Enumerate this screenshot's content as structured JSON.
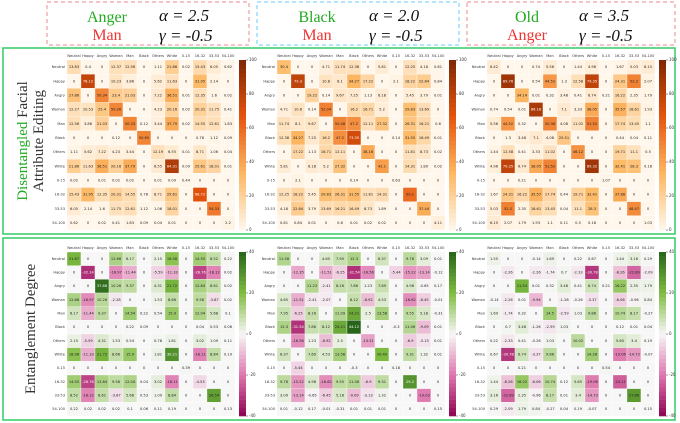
{
  "header": [
    {
      "title": "Anger",
      "subtitle": "Man",
      "alpha": "α = 2.5",
      "gamma": "γ = -0.5"
    },
    {
      "title": "Black",
      "subtitle": "Man",
      "alpha": "α = 2.0",
      "gamma": "γ = -0.5"
    },
    {
      "title": "Old",
      "subtitle": "Anger",
      "alpha": "α = 3.5",
      "gamma": "γ = -0.5"
    }
  ],
  "side_labels": {
    "top": [
      "Disentangled",
      "Facial",
      "Attribute Editing"
    ],
    "bottom": "Entanglement Degree"
  },
  "chart_data": [
    {
      "type": "heatmap",
      "categories": [
        "Neutral",
        "Happy",
        "Angry",
        "Woman",
        "Man",
        "Black",
        "Others",
        "White",
        "0-15",
        "16-32",
        "33-53",
        "54-100"
      ],
      "zlim": [
        0,
        100
      ],
      "zticks": [
        0,
        20,
        40,
        60,
        80,
        100
      ],
      "colormap": [
        "#fff7ec",
        "#fdb863",
        "#e6550d",
        "#7f2704"
      ],
      "values": [
        [
          13.83,
          0.4,
          0,
          12.37,
          12.56,
          0,
          1.11,
          21.86,
          0.02,
          15.43,
          6.05,
          0.62
        ],
        [
          0,
          78.12,
          0,
          10.23,
          3.86,
          0,
          5.62,
          11.63,
          0,
          31.95,
          2.14,
          0
        ],
        [
          27.86,
          0,
          50.34,
          23.4,
          21.03,
          0,
          7.22,
          36.51,
          0.01,
          12.35,
          1.6,
          0.02
        ],
        [
          12.27,
          10.53,
          25.4,
          50.26,
          0,
          0,
          4.23,
          20.16,
          0.02,
          20.31,
          11.75,
          0.41
        ],
        [
          12.56,
          3.86,
          21.03,
          0,
          50.33,
          0.12,
          3.44,
          37.79,
          0.02,
          14.55,
          12.61,
          1.83
        ],
        [
          0,
          0,
          0,
          0.12,
          0,
          50.65,
          0,
          0,
          0,
          0.78,
          1.12,
          0.09
        ],
        [
          1.11,
          5.62,
          7.22,
          4.23,
          3.44,
          0,
          12.19,
          6.55,
          0.01,
          8.71,
          1.06,
          0.04
        ],
        [
          21.86,
          11.63,
          36.51,
          20.16,
          37.79,
          0,
          6.55,
          84.31,
          0.09,
          25.61,
          18.01,
          0.01
        ],
        [
          0.02,
          0,
          0.01,
          0.02,
          0.02,
          0,
          0.01,
          0.09,
          0.44,
          0,
          0,
          0
        ],
        [
          15.43,
          31.95,
          12.35,
          20.31,
          14.55,
          0.78,
          8.71,
          25.61,
          0,
          68.72,
          0,
          0
        ],
        [
          6.05,
          2.14,
          1.6,
          11.75,
          12.61,
          1.12,
          1.06,
          18.01,
          0,
          0,
          54.33,
          0
        ],
        [
          0.62,
          0,
          0.02,
          0.41,
          1.83,
          0.09,
          0.04,
          0.01,
          0,
          0,
          0,
          2.2
        ]
      ]
    },
    {
      "type": "heatmap",
      "categories": [
        "Neutral",
        "Happy",
        "Angry",
        "Woman",
        "Man",
        "Black",
        "Others",
        "White",
        "0-15",
        "16-32",
        "33-53",
        "54-100"
      ],
      "zlim": [
        0,
        100
      ],
      "zticks": [
        0,
        20,
        40,
        60,
        80,
        100
      ],
      "colormap": [
        "#fff7ec",
        "#fdb863",
        "#e6550d",
        "#7f2704"
      ],
      "values": [
        [
          30.4,
          0,
          0,
          4.71,
          11.74,
          12.38,
          0,
          5.81,
          0,
          12.25,
          4.18,
          0.61
        ],
        [
          0,
          79.3,
          0,
          10.8,
          8.1,
          34.27,
          17.22,
          0,
          2.1,
          18.22,
          22.84,
          0.84
        ],
        [
          0,
          0,
          19.22,
          0.14,
          9.67,
          7.25,
          1.13,
          6.18,
          0,
          5.45,
          3.79,
          0.01
        ],
        [
          4.71,
          10.8,
          0.14,
          52.04,
          0,
          16.2,
          16.71,
          5.2,
          0,
          29.83,
          13.69,
          0
        ],
        [
          11.74,
          8.1,
          9.67,
          0,
          50.48,
          47.2,
          12.11,
          27.32,
          0,
          26.31,
          16.21,
          0.6
        ],
        [
          12.38,
          34.27,
          7.25,
          16.2,
          47.2,
          73.35,
          0,
          0,
          0.14,
          31.55,
          16.49,
          0.01
        ],
        [
          0,
          17.22,
          1.13,
          16.71,
          12.11,
          0,
          38.16,
          0,
          0,
          11.81,
          8.73,
          0.02
        ],
        [
          5.81,
          0,
          6.18,
          5.2,
          27.32,
          0,
          0,
          42.1,
          0,
          14.31,
          1.89,
          0.02
        ],
        [
          0,
          2.1,
          0,
          0,
          0,
          0.14,
          0,
          0,
          0.63,
          0,
          0,
          0
        ],
        [
          12.25,
          18.22,
          5.45,
          29.83,
          26.31,
          31.55,
          11.81,
          14.31,
          0,
          59.1,
          0,
          0
        ],
        [
          4.18,
          22.84,
          3.79,
          13.69,
          16.21,
          16.49,
          8.73,
          1.89,
          0,
          0,
          37.44,
          0
        ],
        [
          0.61,
          0.84,
          0.01,
          0,
          0.6,
          0.01,
          0.02,
          0.02,
          0,
          0,
          0,
          4.11
        ]
      ]
    },
    {
      "type": "heatmap",
      "categories": [
        "Neutral",
        "Happy",
        "Angry",
        "Woman",
        "Man",
        "Black",
        "Others",
        "White",
        "0-15",
        "16-32",
        "33-53",
        "54-100"
      ],
      "zlim": [
        0,
        100
      ],
      "zticks": [
        0,
        20,
        40,
        60,
        80,
        100
      ],
      "colormap": [
        "#fff7ec",
        "#fdb863",
        "#e6550d",
        "#7f2704"
      ],
      "values": [
        [
          6.42,
          0,
          0,
          0.74,
          5.56,
          0,
          1.44,
          4.96,
          0,
          1.67,
          5.03,
          6.15
        ],
        [
          0,
          89.76,
          0,
          0.54,
          44.52,
          1.3,
          12.58,
          79.35,
          0,
          24.31,
          52.2,
          2.07
        ],
        [
          0,
          0,
          34.14,
          0.01,
          0.32,
          3.48,
          0.41,
          6.74,
          0.21,
          16.22,
          2.35,
          1.79
        ],
        [
          0.74,
          0.54,
          0.01,
          86.18,
          0,
          7.1,
          3.33,
          38.05,
          0,
          35.57,
          18.61,
          1.93
        ],
        [
          5.56,
          44.52,
          0.32,
          0,
          50.36,
          4.08,
          11.02,
          51.52,
          0,
          17.74,
          13.45,
          1.1
        ],
        [
          0,
          1.3,
          3.48,
          7.1,
          4.08,
          25.51,
          0,
          0,
          0,
          0.44,
          0.04,
          0.11
        ],
        [
          1.44,
          12.58,
          0.41,
          3.33,
          11.02,
          0,
          46.12,
          0,
          0,
          19.71,
          11.1,
          0.5
        ],
        [
          4.96,
          79.35,
          6.74,
          38.05,
          51.52,
          0,
          0,
          89.32,
          0,
          32.41,
          28.3,
          0.18
        ],
        [
          0,
          0,
          0.21,
          0,
          0,
          0,
          0,
          0,
          1.07,
          0,
          0,
          0
        ],
        [
          1.67,
          24.31,
          16.22,
          35.57,
          17.74,
          0.44,
          19.71,
          32.41,
          0,
          37.88,
          0,
          0
        ],
        [
          5.03,
          52.2,
          2.35,
          18.61,
          13.45,
          0.04,
          11.1,
          28.3,
          0,
          0,
          48.47,
          0
        ],
        [
          6.15,
          2.07,
          1.79,
          1.93,
          1.1,
          0.11,
          0.5,
          0.18,
          0,
          0,
          0,
          1.03
        ]
      ]
    },
    {
      "type": "heatmap",
      "categories": [
        "Neutral",
        "Happy",
        "Angry",
        "Woman",
        "Man",
        "Black",
        "Others",
        "White",
        "0-15",
        "16-32",
        "33-53",
        "54-100"
      ],
      "zlim": [
        -40,
        40
      ],
      "zticks": [
        -40,
        -20,
        0,
        20,
        40
      ],
      "colormap": [
        "#8e0152",
        "#de77ae",
        "#f7f7f7",
        "#7fbc41",
        "#276419"
      ],
      "values": [
        [
          21.67,
          0,
          0,
          12.66,
          6.17,
          0,
          2.15,
          18.08,
          0,
          14.55,
          8.52,
          0.22
        ],
        [
          0,
          -32.14,
          0,
          -16.97,
          -11.44,
          0,
          -5.59,
          -11.33,
          0,
          -28.76,
          -18.12,
          0.02
        ],
        [
          0,
          0,
          37.68,
          10.26,
          9.37,
          0,
          4.31,
          21.72,
          0,
          12.84,
          8.61,
          0.02
        ],
        [
          12.66,
          -16.97,
          10.26,
          -2.28,
          0,
          0,
          1.53,
          8.66,
          0,
          9.58,
          -3.87,
          0.02
        ],
        [
          6.17,
          -11.44,
          9.37,
          0,
          14.54,
          0.22,
          0.54,
          15.9,
          0,
          12.04,
          5.68,
          0.1
        ],
        [
          0,
          0,
          0,
          0,
          0.22,
          0.09,
          0,
          0,
          0,
          0.04,
          0.53,
          0.06
        ],
        [
          2.15,
          -5.59,
          4.31,
          1.53,
          0.54,
          0,
          0.78,
          1.81,
          0,
          3.02,
          1.09,
          0.11
        ],
        [
          18.08,
          -11.33,
          21.72,
          8.66,
          15.9,
          0,
          1.81,
          30.21,
          0,
          -18.11,
          8.84,
          0.19
        ],
        [
          0,
          0,
          0,
          0,
          0,
          0,
          0,
          0,
          0.39,
          0,
          0,
          0
        ],
        [
          14.55,
          -28.76,
          12.84,
          9.58,
          12.04,
          0.04,
          3.02,
          -18.11,
          0,
          -4.53,
          0,
          0
        ],
        [
          8.52,
          -18.12,
          8.61,
          -3.87,
          5.68,
          0.53,
          1.09,
          8.84,
          0,
          0,
          26.54,
          0
        ],
        [
          0.22,
          0.02,
          0.02,
          0.02,
          0.1,
          0.06,
          0.11,
          0.19,
          0,
          0,
          0,
          0.13
        ]
      ]
    },
    {
      "type": "heatmap",
      "categories": [
        "Neutral",
        "Happy",
        "Angry",
        "Woman",
        "Man",
        "Black",
        "Others",
        "White",
        "0-15",
        "16-32",
        "33-53",
        "54-100"
      ],
      "zlim": [
        -40,
        40
      ],
      "zticks": [
        -40,
        -20,
        0,
        20,
        40
      ],
      "colormap": [
        "#8e0152",
        "#de77ae",
        "#f7f7f7",
        "#7fbc41",
        "#276419"
      ],
      "values": [
        [
          11.58,
          0,
          0,
          4.65,
          7.95,
          12.3,
          0,
          6.37,
          0,
          9.78,
          3.09,
          0.01
        ],
        [
          0,
          -12.35,
          0,
          -11.51,
          -6.25,
          -31.54,
          -16.56,
          0,
          -5.44,
          -15.22,
          -13.14,
          -0.12
        ],
        [
          0,
          0,
          11.23,
          -2.41,
          8.16,
          7.86,
          1.23,
          7.69,
          0,
          4.98,
          -0.65,
          0.17
        ],
        [
          4.65,
          -11.51,
          -2.41,
          -2.07,
          0,
          8.12,
          -8.92,
          4.53,
          0,
          -16.62,
          -6.45,
          -0.01
        ],
        [
          7.95,
          -6.25,
          8.16,
          0,
          11.09,
          24.21,
          2.5,
          13.58,
          0,
          9.55,
          5.18,
          -0.31
        ],
        [
          12.3,
          -31.54,
          7.86,
          8.12,
          24.21,
          44.12,
          0,
          0,
          -0.3,
          11.06,
          -9.09,
          0.01
        ],
        [
          0,
          -16.56,
          1.23,
          -8.92,
          2.5,
          0,
          -13.51,
          0,
          0,
          -6.9,
          -3.13,
          0.01
        ],
        [
          6.37,
          0,
          7.69,
          4.53,
          13.58,
          0,
          0,
          20.49,
          0,
          9.31,
          1.32,
          0.01
        ],
        [
          0,
          -5.44,
          0,
          0,
          0,
          -0.3,
          0,
          0,
          0.18,
          0,
          0,
          0
        ],
        [
          9.78,
          -15.22,
          4.98,
          -16.62,
          9.55,
          11.06,
          -6.9,
          9.31,
          0,
          29.2,
          0,
          0
        ],
        [
          3.09,
          -13.14,
          -0.65,
          -6.45,
          5.18,
          -9.09,
          -3.13,
          1.32,
          0,
          0,
          -19.03,
          0
        ],
        [
          0.01,
          -0.12,
          0.17,
          -0.01,
          -0.31,
          0.01,
          0.01,
          0.01,
          0,
          0,
          0,
          0.15
        ]
      ]
    },
    {
      "type": "heatmap",
      "categories": [
        "Neutral",
        "Happy",
        "Angry",
        "Woman",
        "Man",
        "Black",
        "Others",
        "White",
        "0-15",
        "16-32",
        "33-53",
        "54-100"
      ],
      "zlim": [
        -40,
        40
      ],
      "zticks": [
        -40,
        -20,
        0,
        20,
        40
      ],
      "colormap": [
        "#8e0152",
        "#de77ae",
        "#f7f7f7",
        "#7fbc41",
        "#276419"
      ],
      "values": [
        [
          1.55,
          0,
          0,
          -0.14,
          1.69,
          0,
          0.22,
          0.67,
          0,
          1.44,
          3.16,
          0.29
        ],
        [
          0,
          -2.26,
          0,
          -2.26,
          -1.74,
          0.7,
          -2.33,
          -30.78,
          0,
          -8.26,
          -22.89,
          -2.09
        ],
        [
          0,
          0,
          21.53,
          0.01,
          0.32,
          3.48,
          0.41,
          6.74,
          0.21,
          16.22,
          2.35,
          1.79
        ],
        [
          -0.14,
          -2.26,
          0.01,
          -9.94,
          0,
          -1.26,
          -0.26,
          -3.37,
          0,
          -6.06,
          -0.96,
          0.84
        ],
        [
          1.69,
          -1.74,
          0.32,
          0,
          14.5,
          -2.59,
          1.03,
          9.86,
          0,
          10.74,
          8.17,
          -0.27
        ],
        [
          0,
          0.7,
          3.48,
          -1.26,
          -2.59,
          1.03,
          0,
          0,
          0,
          0.12,
          0.01,
          0.04
        ],
        [
          0.22,
          -2.33,
          0.41,
          -0.26,
          1.03,
          0,
          10.02,
          0,
          0,
          5.65,
          3.4,
          0.19
        ],
        [
          0.67,
          -30.78,
          6.74,
          -3.37,
          9.86,
          0,
          0,
          14.28,
          0,
          -19.06,
          -14.73,
          -0.07
        ],
        [
          0,
          0,
          0.21,
          0,
          0,
          0,
          0,
          0,
          0.54,
          0,
          0,
          0
        ],
        [
          1.44,
          -8.26,
          16.22,
          -6.06,
          10.74,
          0.12,
          5.65,
          -19.06,
          0,
          -24.11,
          0,
          0
        ],
        [
          3.16,
          -22.89,
          2.35,
          -0.96,
          8.17,
          0.01,
          3.4,
          -14.73,
          0,
          0,
          27.86,
          0
        ],
        [
          0.29,
          -2.09,
          1.79,
          0.84,
          -0.27,
          0.04,
          0.19,
          -0.07,
          0,
          0,
          0,
          0.15
        ]
      ]
    }
  ]
}
